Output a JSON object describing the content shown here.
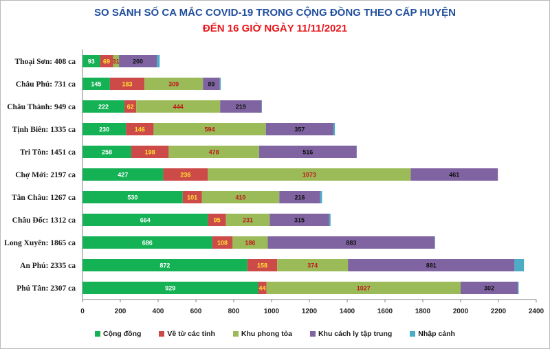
{
  "chart_data": {
    "type": "bar",
    "orientation": "horizontal",
    "stacked": true,
    "title": "SO SÁNH SỐ CA MẮC COVID-19 TRONG CỘNG ĐỒNG THEO CẤP HUYỆN",
    "subtitle": "ĐẾN 16 GIỜ NGÀY 11/11/2021",
    "xlim": [
      0,
      2400
    ],
    "xticks": [
      0,
      200,
      400,
      600,
      800,
      1000,
      1200,
      1400,
      1600,
      1800,
      2000,
      2200,
      2400
    ],
    "categories": [
      "Thoại Sơn: 408 ca",
      "Châu Phú: 731 ca",
      "Châu Thành: 949 ca",
      "Tịnh Biên: 1335 ca",
      "Tri Tôn:  1451 ca",
      "Chợ Mới: 2197 ca",
      "Tân Châu: 1267 ca",
      "Châu Đốc: 1312 ca",
      "Long Xuyên: 1865 ca",
      "An Phú: 2335 ca",
      "Phú Tân: 2307 ca"
    ],
    "series": [
      {
        "name": "Cộng đồng",
        "color": "#14b155",
        "label_color": "#ffffff",
        "values": [
          93,
          145,
          222,
          230,
          258,
          427,
          530,
          664,
          686,
          872,
          929
        ]
      },
      {
        "name": "Về từ các tỉnh",
        "color": "#cc4b49",
        "label_color": "#ffe033",
        "values": [
          69,
          183,
          62,
          146,
          198,
          236,
          101,
          95,
          108,
          158,
          44
        ]
      },
      {
        "name": "Khu phong tỏa",
        "color": "#9bbb59",
        "label_color": "#c0161b",
        "values": [
          31,
          309,
          444,
          594,
          478,
          1073,
          410,
          231,
          186,
          374,
          1027
        ]
      },
      {
        "name": "Khu cách ly tập trung",
        "color": "#8064a2",
        "label_color": "#111111",
        "values": [
          200,
          89,
          219,
          357,
          516,
          461,
          216,
          315,
          883,
          881,
          302
        ]
      },
      {
        "name": "Nhập cảnh",
        "color": "#4bacc6",
        "label_color": "#111111",
        "values": [
          15,
          5,
          2,
          8,
          1,
          0,
          10,
          7,
          2,
          50,
          5
        ]
      }
    ],
    "legend_position": "bottom"
  }
}
